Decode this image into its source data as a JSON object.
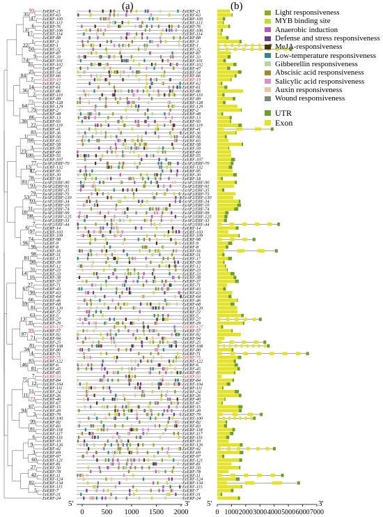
{
  "panel_labels": {
    "a": "(a)",
    "b": "(b)"
  },
  "legend": {
    "elements": [
      {
        "label": "Light responsiveness",
        "color": "#8aaa2a"
      },
      {
        "label": "MYB binding site",
        "color": "#c8dc2c"
      },
      {
        "label": "Anaerobic induction",
        "color": "#b05bb5"
      },
      {
        "label": "Defense and stress responsiveness",
        "color": "#6f3c8c"
      },
      {
        "label": "MeJA-responsiveness",
        "color": "#4b2e18"
      },
      {
        "label": "Low-temperature responsiveness",
        "color": "#2e8a8a"
      },
      {
        "label": "Gibberellin responsiveness",
        "color": "#b9d6a2"
      },
      {
        "label": "Abscisic acid responsiveness",
        "color": "#9c8a2e"
      },
      {
        "label": "Salicylic acid responsiveness",
        "color": "#d98fc9"
      },
      {
        "label": "Auxin responsiveness",
        "color": "#e4c9a2"
      },
      {
        "label": "Wound responsiveness",
        "color": "#7a8a76"
      }
    ],
    "structure": [
      {
        "label": "UTR",
        "color": "#6e9e2e"
      },
      {
        "label": "Exon",
        "color": "#e2e22a"
      }
    ]
  },
  "promoter_axis": {
    "ticks": [
      "0",
      "500",
      "1000",
      "1500",
      "2000"
    ],
    "start_label": "5'",
    "end_label": "3'"
  },
  "gene_axis": {
    "ticks": [
      "0",
      "1000",
      "2000",
      "3000",
      "4000",
      "5000",
      "6000",
      "7000"
    ],
    "start_label": "5'",
    "end_label": "3'"
  },
  "genes": [
    "EeERF-21",
    "EeERF-63",
    "EeERF-105",
    "EeERF-113",
    "EeERF-76",
    "EeERF-106",
    "EeERF-114",
    "EeERF-88",
    "EeERF-3",
    "EeERF-1",
    "EeERF-32",
    "EeERF-87",
    "EeERF-33",
    "EeERF-101",
    "EeERF-102",
    "EeERF-47",
    "EeERF-54",
    "EeERF-66",
    "EeERF-19",
    "EeERF-62",
    "EeERF-61",
    "EeERF-86",
    "EeERF-110",
    "EeERF-89",
    "EeERF-128",
    "EeERF-129",
    "EeERF-2",
    "EeERF-48",
    "EeERF-13",
    "EeERF-93",
    "EeERF-119",
    "EeERF-41",
    "EeERF-36",
    "EeERF-56",
    "EeERF-65",
    "EeERF-58",
    "EeERF-59",
    "EeERF-60",
    "EeERF-55",
    "EeERF-107",
    "EeAP2/ERF-70",
    "EeERF-132",
    "EeERF-95",
    "EeERF-30",
    "EeERF-18",
    "EeAP2/ERF-90",
    "EeAP2/ERF-91",
    "EeAP2/ERF-35",
    "EeAP2/ERF-73",
    "EeAP2/ERF-130",
    "EeAP2/ERF-34",
    "EeAP2/ERF-10",
    "EeAP2/ERF-74",
    "EeAP2/ERF-99",
    "EeAP2/ERF-125",
    "EeAP2/ERF-33",
    "EeAP2/ERF-44",
    "EeERF-14",
    "EeERF-103",
    "EeERF-109",
    "EeERF-98",
    "EeERF-9",
    "EeERF-8",
    "EeERF-16",
    "EeERF-31",
    "EeERF-17",
    "EeERF-39",
    "EeERF-12",
    "EeERF-23",
    "EeERF-33",
    "EeERF-38",
    "EeERF-37",
    "EeERF-71",
    "EeERF-43",
    "EeERF-63",
    "EeERF-64",
    "EeERF-46",
    "EeERF-68",
    "EeERF-120",
    "EeERF-72",
    "EeERF-5",
    "EeERF-27",
    "EeERF-29",
    "EeERF-127",
    "EeERF-57",
    "EeERF-92",
    "EeERF-94",
    "EeERF-25",
    "EeERF-108",
    "EeERF-80",
    "EeERF-71",
    "EeERF-75",
    "EeERF-122",
    "EeERF-6",
    "EeERF-45",
    "EeERF-85",
    "EeERF-53",
    "EeERF-84",
    "EeERF-104",
    "EeERF-111",
    "EeERF-24",
    "EeERF-26",
    "EeERF-40",
    "EeERF-67",
    "EeERF-15",
    "EeERF-49",
    "EeERF-79",
    "EeERF-100",
    "EeERF-82",
    "EeERF-83",
    "EeERF-118",
    "EeERF-117",
    "EeERF-116",
    "EeERF-10",
    "EeERF-126",
    "EeERF-42",
    "EeERF-69",
    "EeERF-97",
    "EeERF-121",
    "EeERF-81",
    "EeERF-50",
    "EeERF-78",
    "EeERF-11",
    "EeERF-124",
    "EeERF-134",
    "EeERF-115",
    "EeERF-7",
    "EeERF-31",
    "EeERF-24"
  ],
  "bootstrap_values": [
    "99",
    "47",
    "6",
    "17",
    "1",
    "50",
    "9",
    "31",
    "25",
    "7",
    "14",
    "2",
    "73",
    "79",
    "86",
    "22",
    "83",
    "60",
    "3",
    "100",
    "77",
    "87",
    "78",
    "93",
    "79",
    "93",
    "31",
    "98",
    "7",
    "97",
    "74",
    "96",
    "98",
    "98",
    "31",
    "16",
    "27",
    "90",
    "66",
    "81",
    "63",
    "35",
    "99",
    "71",
    "81",
    "4",
    "83",
    "81",
    "7",
    "12",
    "51",
    "73",
    "67",
    "3",
    "99",
    "81",
    "6",
    "9",
    "3",
    "60",
    "27",
    "42",
    "82",
    "5",
    "35",
    "3",
    "22",
    "74",
    "84",
    "36",
    "64",
    "30",
    "1",
    "23",
    "13",
    "81",
    "53",
    "18",
    "6",
    "96",
    "81",
    "14",
    "67",
    "39",
    "13",
    "87",
    "34",
    "46",
    "75",
    "11",
    "94"
  ]
}
